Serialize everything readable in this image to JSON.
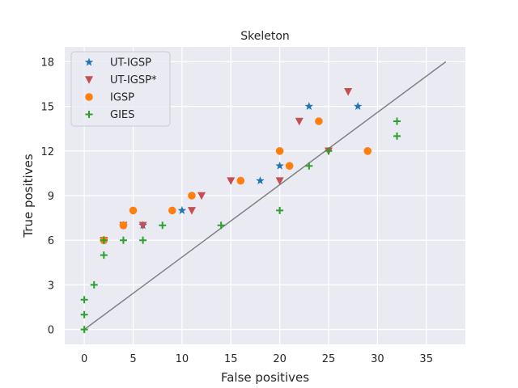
{
  "chart_data": {
    "type": "scatter",
    "title": "Skeleton",
    "xlabel": "False positives",
    "ylabel": "True positives",
    "xlim": [
      -2,
      39
    ],
    "ylim": [
      -1,
      19
    ],
    "xticks": [
      0,
      5,
      10,
      15,
      20,
      25,
      30,
      35
    ],
    "yticks": [
      0,
      3,
      6,
      9,
      12,
      15,
      18
    ],
    "grid": true,
    "legend_position": "top-left",
    "reference_line": {
      "from": [
        0,
        0
      ],
      "to": [
        37,
        18
      ],
      "color": "#808080"
    },
    "series": [
      {
        "name": "UT-IGSP",
        "marker": "star",
        "color": "#1f77b4",
        "points": [
          [
            2,
            6
          ],
          [
            4,
            7
          ],
          [
            6,
            7
          ],
          [
            10,
            8
          ],
          [
            18,
            10
          ],
          [
            20,
            11
          ],
          [
            23,
            15
          ],
          [
            28,
            15
          ]
        ]
      },
      {
        "name": "UT-IGSP*",
        "marker": "triangle-down",
        "color": "#c44e52",
        "points": [
          [
            2,
            6
          ],
          [
            4,
            7
          ],
          [
            6,
            7
          ],
          [
            11,
            8
          ],
          [
            12,
            9
          ],
          [
            15,
            10
          ],
          [
            20,
            10
          ],
          [
            22,
            14
          ],
          [
            25,
            12
          ],
          [
            27,
            16
          ]
        ]
      },
      {
        "name": "IGSP",
        "marker": "circle",
        "color": "#ff7f0e",
        "points": [
          [
            2,
            6
          ],
          [
            4,
            7
          ],
          [
            5,
            8
          ],
          [
            9,
            8
          ],
          [
            11,
            9
          ],
          [
            16,
            10
          ],
          [
            20,
            12
          ],
          [
            21,
            11
          ],
          [
            24,
            14
          ],
          [
            29,
            12
          ]
        ]
      },
      {
        "name": "GIES",
        "marker": "plus",
        "color": "#2ca02c",
        "points": [
          [
            0,
            0
          ],
          [
            0,
            1
          ],
          [
            0,
            2
          ],
          [
            1,
            3
          ],
          [
            2,
            5
          ],
          [
            2,
            6
          ],
          [
            4,
            6
          ],
          [
            6,
            6
          ],
          [
            8,
            7
          ],
          [
            14,
            7
          ],
          [
            20,
            8
          ],
          [
            23,
            11
          ],
          [
            25,
            12
          ],
          [
            32,
            13
          ],
          [
            32,
            14
          ]
        ]
      }
    ]
  }
}
